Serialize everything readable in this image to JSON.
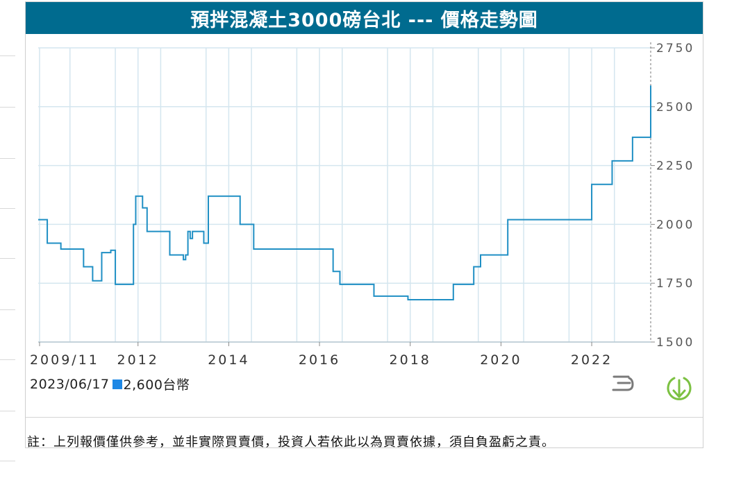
{
  "header": {
    "title": "預拌混凝土3000磅台北 --- 價格走勢圖"
  },
  "readout": {
    "date": "2023/06/17",
    "value": "2,600台幣",
    "swatch_color": "#1e88e5"
  },
  "footer": {
    "note": "註：上列報價僅供參考，並非實際買賣價，投資人若依此以為買賣依據，須自負盈虧之責。"
  },
  "icons": {
    "menu": "hamburger-menu-icon",
    "download": "download-icon"
  },
  "colors": {
    "title_bg": "#006b8f",
    "line": "#1f8fc4",
    "grid": "#d4e6ef",
    "download": "#7cc142"
  },
  "chart_data": {
    "type": "line",
    "title": "",
    "xlabel": "",
    "ylabel": "",
    "x_tick_labels": [
      {
        "label": "2009/11",
        "x": 2009.83
      },
      {
        "label": "2012",
        "x": 2012.0
      },
      {
        "label": "2014",
        "x": 2014.0
      },
      {
        "label": "2016",
        "x": 2016.0
      },
      {
        "label": "2018",
        "x": 2018.0
      },
      {
        "label": "2020",
        "x": 2020.0
      },
      {
        "label": "2022",
        "x": 2022.0
      }
    ],
    "y_tick_labels": [
      "1500",
      "1750",
      "2000",
      "2250",
      "2500",
      "2750"
    ],
    "xlim": [
      2009.8,
      2023.3
    ],
    "ylim": [
      1500,
      2750
    ],
    "grid": true,
    "series": [
      {
        "step": true,
        "points": [
          [
            2009.8,
            2020
          ],
          [
            2010.0,
            1920
          ],
          [
            2010.3,
            1895
          ],
          [
            2010.8,
            1820
          ],
          [
            2011.0,
            1760
          ],
          [
            2011.2,
            1880
          ],
          [
            2011.4,
            1890
          ],
          [
            2011.5,
            1745
          ],
          [
            2011.9,
            2000
          ],
          [
            2011.95,
            2120
          ],
          [
            2012.1,
            2070
          ],
          [
            2012.2,
            1970
          ],
          [
            2012.7,
            1870
          ],
          [
            2013.0,
            1850
          ],
          [
            2013.05,
            1870
          ],
          [
            2013.1,
            1970
          ],
          [
            2013.15,
            1940
          ],
          [
            2013.2,
            1970
          ],
          [
            2013.45,
            1920
          ],
          [
            2013.55,
            2120
          ],
          [
            2014.25,
            2000
          ],
          [
            2014.55,
            1895
          ],
          [
            2016.3,
            1800
          ],
          [
            2016.45,
            1745
          ],
          [
            2017.2,
            1695
          ],
          [
            2017.95,
            1680
          ],
          [
            2018.95,
            1745
          ],
          [
            2019.4,
            1820
          ],
          [
            2019.55,
            1870
          ],
          [
            2020.15,
            2020
          ],
          [
            2022.0,
            2170
          ],
          [
            2022.45,
            2270
          ],
          [
            2022.9,
            2370
          ],
          [
            2023.3,
            2590
          ]
        ]
      }
    ]
  }
}
